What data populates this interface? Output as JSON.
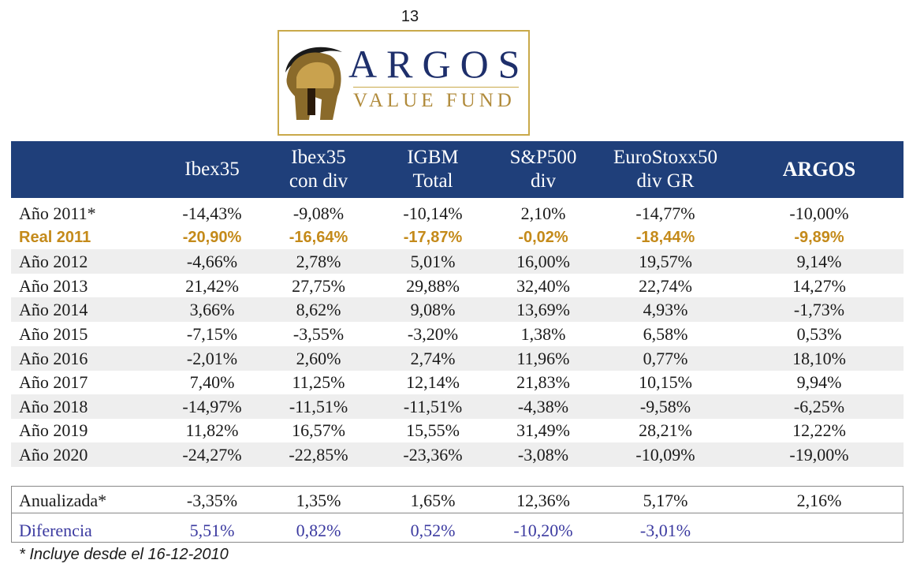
{
  "page_number": "13",
  "logo": {
    "name": "ARGOS",
    "tagline": "VALUE FUND"
  },
  "headers": [
    {
      "line1": "Ibex35",
      "line2": ""
    },
    {
      "line1": "Ibex35",
      "line2": "con div"
    },
    {
      "line1": "IGBM",
      "line2": "Total"
    },
    {
      "line1": "S&P500",
      "line2": "div"
    },
    {
      "line1": "EuroStoxx50",
      "line2": "div GR"
    },
    {
      "line1": "ARGOS",
      "line2": ""
    }
  ],
  "rows": [
    {
      "label": "Año 2011*",
      "values": [
        "-14,43%",
        "-9,08%",
        "-10,14%",
        "2,10%",
        "-14,77%",
        "-10,00%"
      ]
    },
    {
      "label": "Real 2011",
      "values": [
        "-20,90%",
        "-16,64%",
        "-17,87%",
        "-0,02%",
        "-18,44%",
        "-9,89%"
      ]
    },
    {
      "label": "Año 2012",
      "values": [
        "-4,66%",
        "2,78%",
        "5,01%",
        "16,00%",
        "19,57%",
        "9,14%"
      ]
    },
    {
      "label": "Año 2013",
      "values": [
        "21,42%",
        "27,75%",
        "29,88%",
        "32,40%",
        "22,74%",
        "14,27%"
      ]
    },
    {
      "label": "Año 2014",
      "values": [
        "3,66%",
        "8,62%",
        "9,08%",
        "13,69%",
        "4,93%",
        "-1,73%"
      ]
    },
    {
      "label": "Año 2015",
      "values": [
        "-7,15%",
        "-3,55%",
        "-3,20%",
        "1,38%",
        "6,58%",
        "0,53%"
      ]
    },
    {
      "label": "Año 2016",
      "values": [
        "-2,01%",
        "2,60%",
        "2,74%",
        "11,96%",
        "0,77%",
        "18,10%"
      ]
    },
    {
      "label": "Año 2017",
      "values": [
        "7,40%",
        "11,25%",
        "12,14%",
        "21,83%",
        "10,15%",
        "9,94%"
      ]
    },
    {
      "label": "Año 2018",
      "values": [
        "-14,97%",
        "-11,51%",
        "-11,51%",
        "-4,38%",
        "-9,58%",
        "-6,25%"
      ]
    },
    {
      "label": "Año 2019",
      "values": [
        "11,82%",
        "16,57%",
        "15,55%",
        "31,49%",
        "28,21%",
        "12,22%"
      ]
    },
    {
      "label": "Año 2020",
      "values": [
        "-24,27%",
        "-22,85%",
        "-23,36%",
        "-3,08%",
        "-10,09%",
        "-19,00%"
      ]
    }
  ],
  "annualized": {
    "label": "Anualizada*",
    "values": [
      "-3,35%",
      "1,35%",
      "1,65%",
      "12,36%",
      "5,17%",
      "2,16%"
    ]
  },
  "difference": {
    "label": "Diferencia",
    "values": [
      "5,51%",
      "0,82%",
      "0,52%",
      "-10,20%",
      "-3,01%",
      ""
    ]
  },
  "footnote": "* Incluye desde el 16-12-2010",
  "colors": {
    "header_bg": "#1f3f7a",
    "real_row": "#c48a1a",
    "difference_row": "#3b3aa0",
    "logo_gold": "#c9a94a",
    "logo_navy": "#1e2f6b"
  }
}
